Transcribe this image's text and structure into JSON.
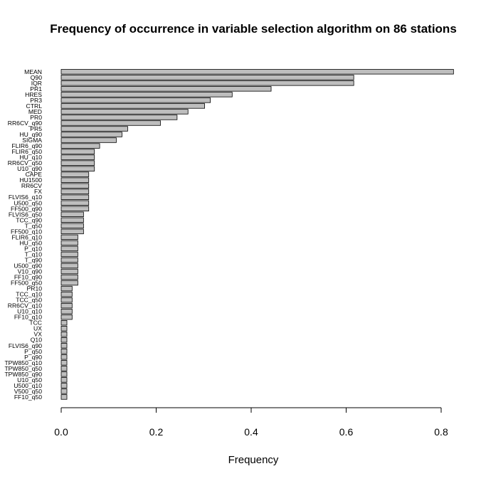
{
  "chart_data": {
    "type": "bar",
    "orientation": "horizontal",
    "title": "Frequency of occurrence in variable selection algorithm on 86 stations",
    "xlabel": "Frequency",
    "ylabel": "",
    "xlim": [
      0,
      0.8
    ],
    "xticks": [
      0,
      0.2,
      0.4,
      0.6,
      0.8
    ],
    "xtick_labels": [
      "0.0",
      "0.2",
      "0.4",
      "0.6",
      "0.8"
    ],
    "bar_color": "#bebebe",
    "categories": [
      "MEAN",
      "Q90",
      "IQR",
      "PR1",
      "HRES",
      "PR3",
      "CTRL",
      "MED",
      "PR0",
      "RR6CV_q90",
      "PR5",
      "HU_q90",
      "SIGMA",
      "FLIR6_q90",
      "FLIR6_q50",
      "HU_q10",
      "RR6CV_q50",
      "U10_q90",
      "CAPE",
      "HU1500",
      "RR6CV",
      "FX",
      "FLVIS6_q10",
      "U500_q50",
      "FF500_q90",
      "FLVIS6_q50",
      "TCC_q90",
      "T_q50",
      "FF500_q10",
      "FLIR6_q10",
      "HU_q50",
      "P_q10",
      "T_q10",
      "T_q90",
      "U500_q90",
      "V10_q90",
      "FF10_q90",
      "FF500_q50",
      "PR10",
      "TCC_q10",
      "TCC_q50",
      "RR6CV_q10",
      "U10_q10",
      "FF10_q10",
      "TCC",
      "UX",
      "VX",
      "Q10",
      "FLVIS6_q90",
      "P_q50",
      "P_q90",
      "TPW850_q10",
      "TPW850_q50",
      "TPW850_q90",
      "U10_q50",
      "U500_q10",
      "V500_q50",
      "FF10_q50"
    ],
    "values": [
      0.826,
      0.616,
      0.616,
      0.442,
      0.36,
      0.314,
      0.302,
      0.267,
      0.244,
      0.209,
      0.14,
      0.128,
      0.116,
      0.081,
      0.07,
      0.07,
      0.07,
      0.07,
      0.058,
      0.058,
      0.058,
      0.058,
      0.058,
      0.058,
      0.058,
      0.047,
      0.047,
      0.047,
      0.047,
      0.035,
      0.035,
      0.035,
      0.035,
      0.035,
      0.035,
      0.035,
      0.035,
      0.035,
      0.023,
      0.023,
      0.023,
      0.023,
      0.023,
      0.023,
      0.012,
      0.012,
      0.012,
      0.012,
      0.012,
      0.012,
      0.012,
      0.012,
      0.012,
      0.012,
      0.012,
      0.012,
      0.012,
      0.012
    ],
    "grid": false,
    "legend": "none"
  }
}
